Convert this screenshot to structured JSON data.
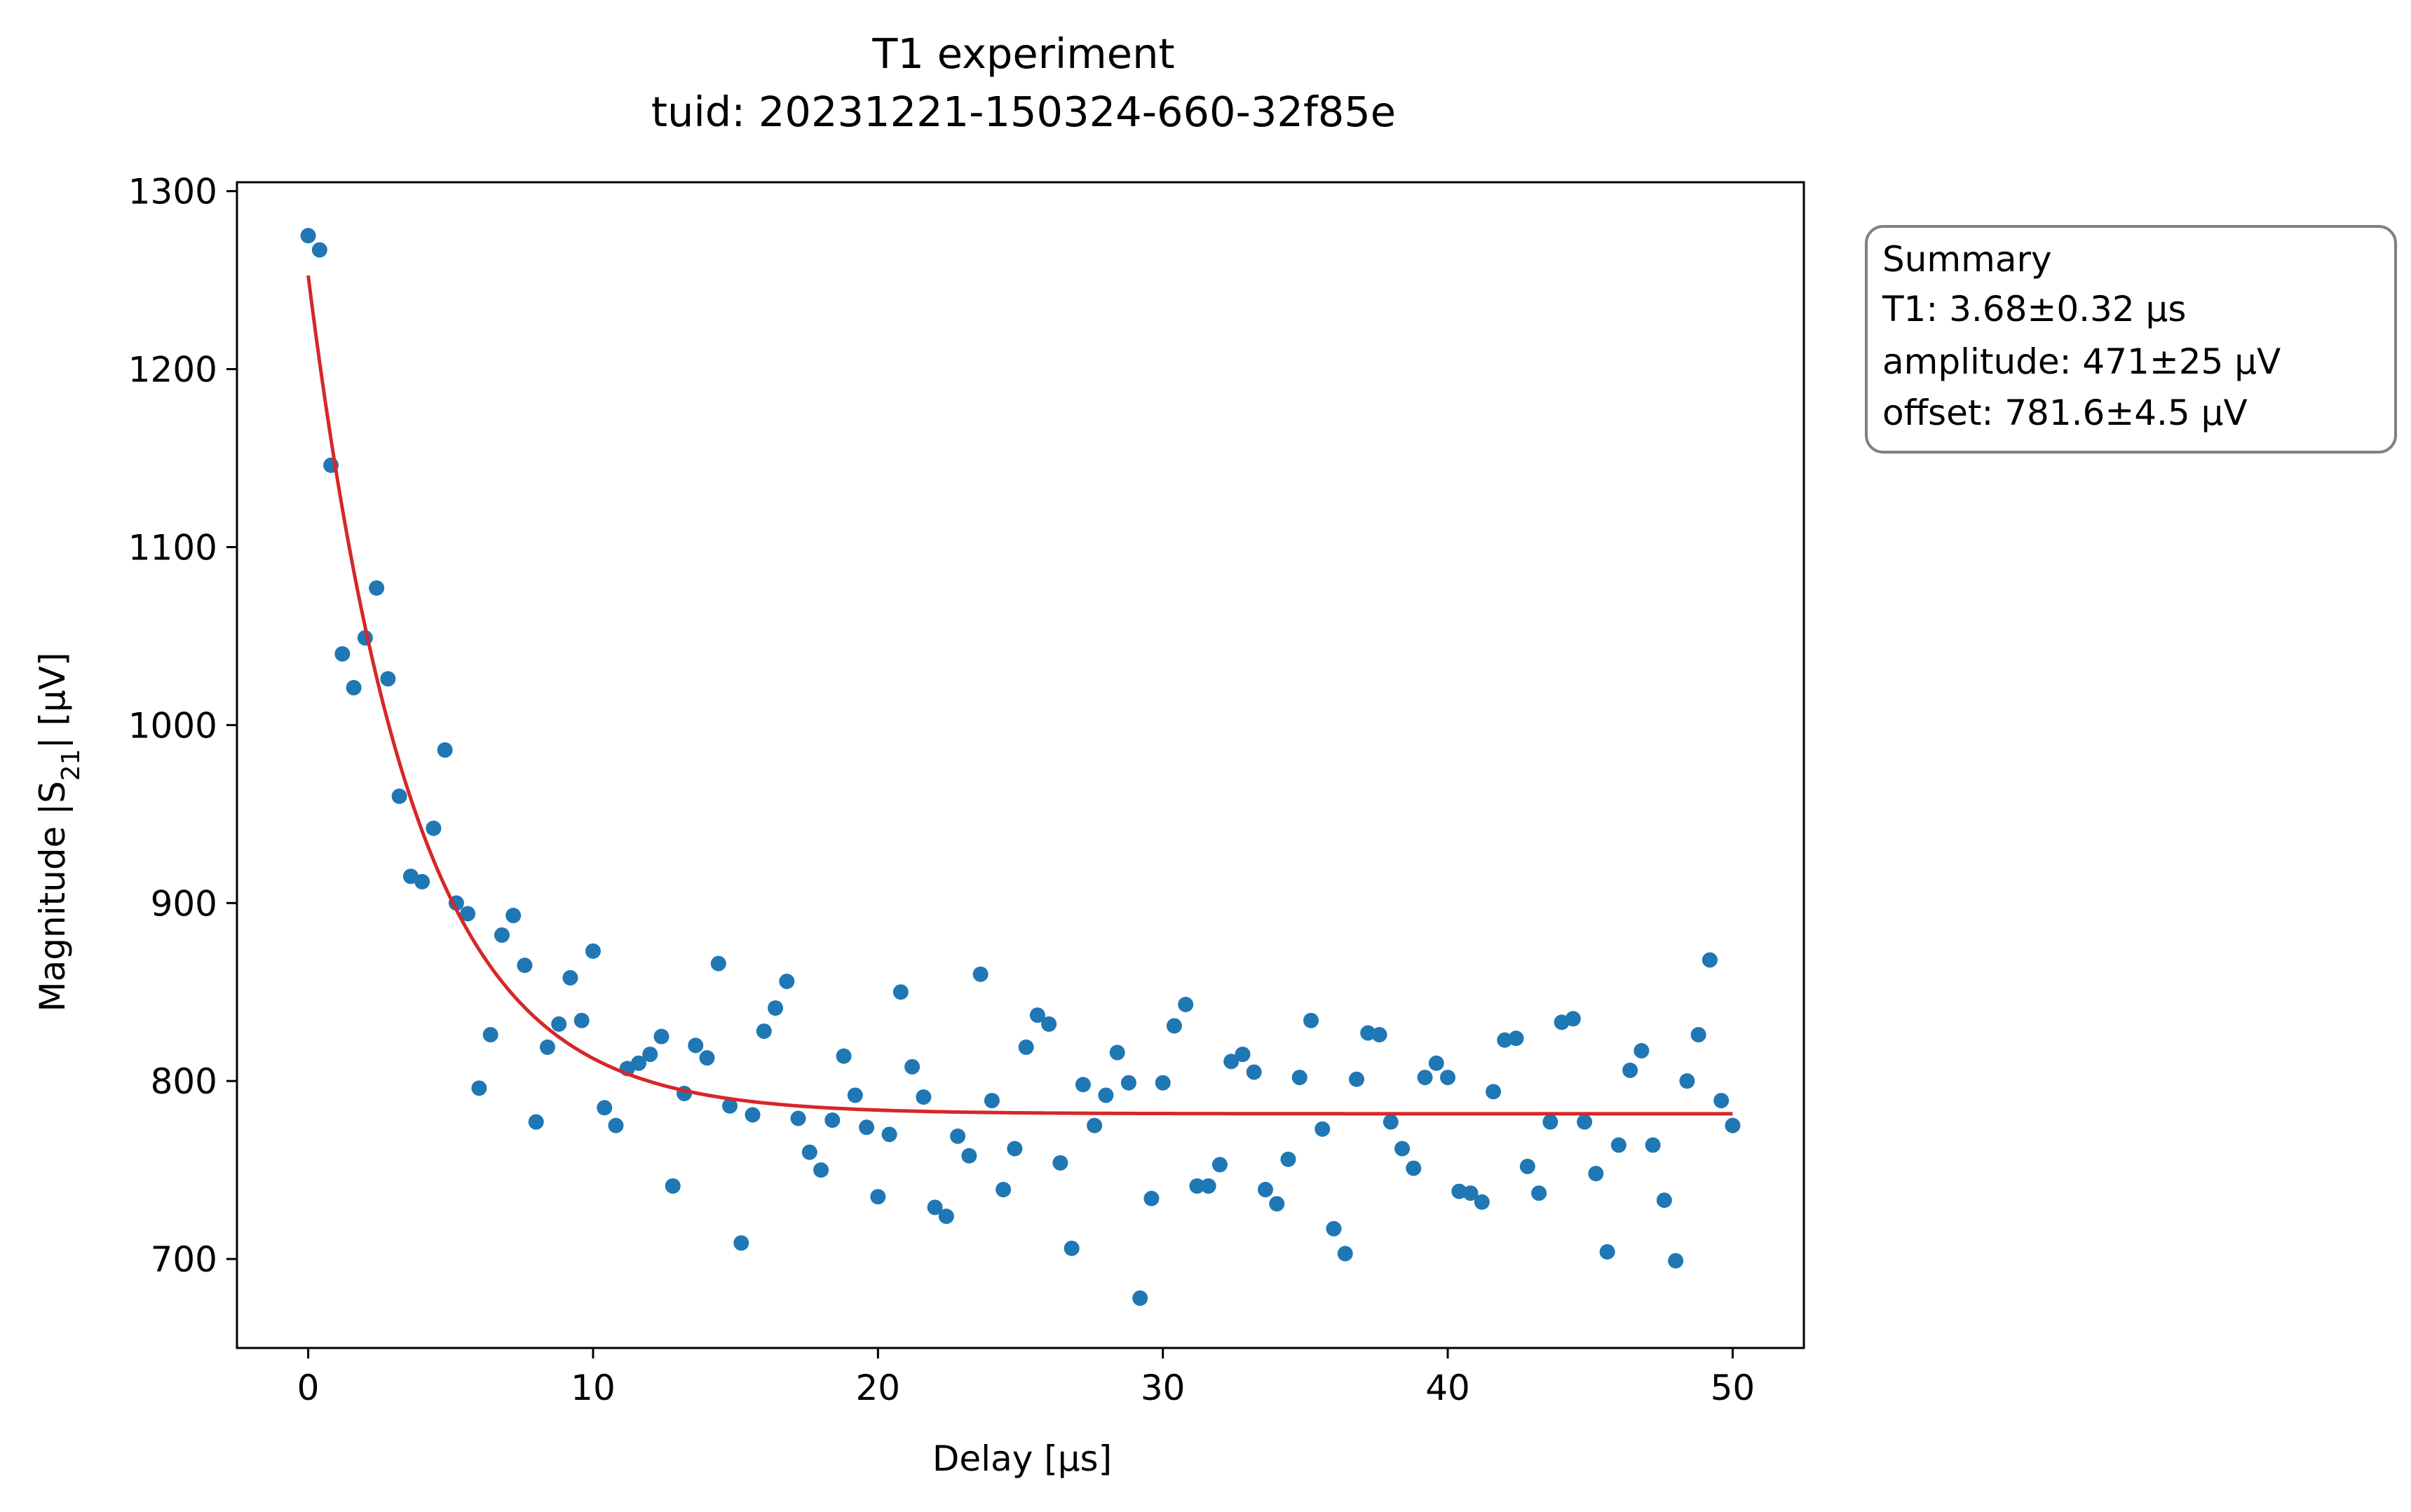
{
  "chart_data": {
    "type": "scatter",
    "title": "T1 experiment",
    "subtitle": "tuid: 20231221-150324-660-32f85e",
    "xlabel": "Delay [µs]",
    "ylabel_prefix": "Magnitude |S",
    "ylabel_sub": "21",
    "ylabel_suffix": "| [µV]",
    "xlim": [
      -2.5,
      52.5
    ],
    "ylim": [
      650,
      1305
    ],
    "xticks": [
      0,
      10,
      20,
      30,
      40,
      50
    ],
    "yticks": [
      700,
      800,
      900,
      1000,
      1100,
      1200,
      1300
    ],
    "grid": false,
    "colors": {
      "points": "#1f77b4",
      "fit": "#d62728",
      "box_edge": "#808080"
    },
    "series": [
      {
        "kind": "scatter",
        "x": [
          0.0,
          0.4,
          0.8,
          1.2,
          1.6,
          2.0,
          2.4,
          2.8,
          3.2,
          3.6,
          4.0,
          4.4,
          4.8,
          5.2,
          5.6,
          6.0,
          6.4,
          6.8,
          7.2,
          7.6,
          8.0,
          8.4,
          8.8,
          9.2,
          9.6,
          10.0,
          10.4,
          10.8,
          11.2,
          11.6,
          12.0,
          12.4,
          12.8,
          13.2,
          13.6,
          14.0,
          14.4,
          14.8,
          15.2,
          15.6,
          16.0,
          16.4,
          16.8,
          17.2,
          17.6,
          18.0,
          18.4,
          18.8,
          19.2,
          19.6,
          20.0,
          20.4,
          20.8,
          21.2,
          21.6,
          22.0,
          22.4,
          22.8,
          23.2,
          23.6,
          24.0,
          24.4,
          24.8,
          25.2,
          25.6,
          26.0,
          26.4,
          26.8,
          27.2,
          27.6,
          28.0,
          28.4,
          28.8,
          29.2,
          29.6,
          30.0,
          30.4,
          30.8,
          31.2,
          31.6,
          32.0,
          32.4,
          32.8,
          33.2,
          33.6,
          34.0,
          34.4,
          34.8,
          35.2,
          35.6,
          36.0,
          36.4,
          36.8,
          37.2,
          37.6,
          38.0,
          38.4,
          38.8,
          39.2,
          39.6,
          40.0,
          40.4,
          40.8,
          41.2,
          41.6,
          42.0,
          42.4,
          42.8,
          43.2,
          43.6,
          44.0,
          44.4,
          44.8,
          45.2,
          45.6,
          46.0,
          46.4,
          46.8,
          47.2,
          47.6,
          48.0,
          48.4,
          48.8,
          49.2,
          49.6,
          50.0
        ],
        "y": [
          1275,
          1267,
          1146,
          1040,
          1021,
          1049,
          1077,
          1026,
          960,
          915,
          912,
          942,
          986,
          900,
          894,
          796,
          826,
          882,
          893,
          865,
          777,
          819,
          832,
          858,
          834,
          873,
          785,
          775,
          807,
          810,
          815,
          825,
          741,
          793,
          820,
          813,
          866,
          786,
          709,
          781,
          828,
          841,
          856,
          779,
          760,
          750,
          778,
          814,
          792,
          774,
          735,
          770,
          850,
          808,
          791,
          729,
          724,
          769,
          758,
          860,
          789,
          739,
          762,
          819,
          837,
          832,
          754,
          706,
          798,
          775,
          792,
          816,
          799,
          678,
          734,
          799,
          831,
          843,
          741,
          741,
          753,
          811,
          815,
          805,
          739,
          731,
          756,
          802,
          834,
          773,
          717,
          703,
          801,
          827,
          826,
          777,
          762,
          751,
          802,
          810,
          802,
          738,
          737,
          732,
          794,
          823,
          824,
          752,
          737,
          777,
          833,
          835,
          777,
          748,
          704,
          764,
          806,
          817,
          764,
          733,
          699,
          800,
          826,
          868,
          789,
          775
        ]
      },
      {
        "kind": "fit",
        "model": "exponential-decay",
        "T1": 3.68,
        "amplitude": 471,
        "offset": 781.6
      }
    ],
    "summary": {
      "lines": [
        "Summary",
        "T1: 3.68±0.32 µs",
        "amplitude: 471±25 µV",
        "offset: 781.6±4.5 µV"
      ],
      "placement": "outside-right-top"
    }
  }
}
